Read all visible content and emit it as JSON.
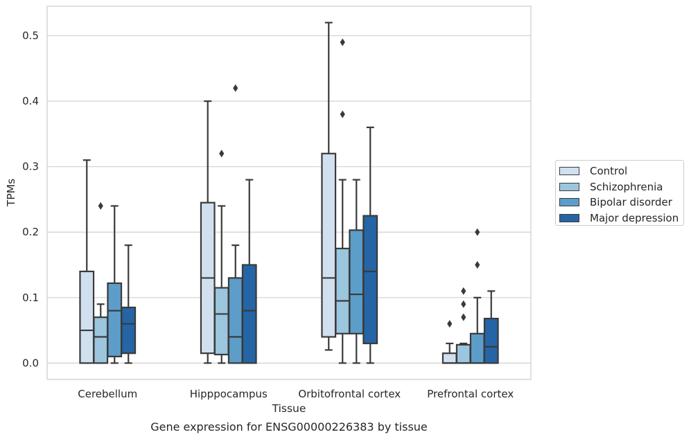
{
  "chart_data": {
    "type": "box",
    "title": "",
    "xlabel": "Tissue",
    "ylabel": "TPMs",
    "caption": "Gene expression for ENSG00000226383 by tissue",
    "ylim": [
      -0.025,
      0.545
    ],
    "yticks": [
      0.0,
      0.1,
      0.2,
      0.3,
      0.4,
      0.5
    ],
    "ytick_labels": [
      "0.0",
      "0.1",
      "0.2",
      "0.3",
      "0.4",
      "0.5"
    ],
    "grid": true,
    "legend_position": "right",
    "categories": [
      "Cerebellum",
      "Hipppocampus",
      "Orbitofrontal cortex",
      "Prefrontal cortex"
    ],
    "series": [
      {
        "name": "Control",
        "color": "#d0e0ef",
        "boxes": [
          {
            "q1": 0.0,
            "median": 0.05,
            "q3": 0.14,
            "whislo": 0.0,
            "whishi": 0.31,
            "fliers": []
          },
          {
            "q1": 0.015,
            "median": 0.13,
            "q3": 0.245,
            "whislo": 0.0,
            "whishi": 0.4,
            "fliers": []
          },
          {
            "q1": 0.04,
            "median": 0.13,
            "q3": 0.32,
            "whislo": 0.02,
            "whishi": 0.52,
            "fliers": []
          },
          {
            "q1": 0.0,
            "median": 0.0,
            "q3": 0.015,
            "whislo": 0.0,
            "whishi": 0.03,
            "fliers": [
              0.06
            ]
          }
        ]
      },
      {
        "name": "Schizophrenia",
        "color": "#9cc5de",
        "boxes": [
          {
            "q1": 0.0,
            "median": 0.04,
            "q3": 0.07,
            "whislo": 0.0,
            "whishi": 0.09,
            "fliers": [
              0.24
            ]
          },
          {
            "q1": 0.013,
            "median": 0.075,
            "q3": 0.115,
            "whislo": 0.0,
            "whishi": 0.24,
            "fliers": [
              0.32
            ]
          },
          {
            "q1": 0.045,
            "median": 0.095,
            "q3": 0.175,
            "whislo": 0.0,
            "whishi": 0.28,
            "fliers": [
              0.38,
              0.49
            ]
          },
          {
            "q1": 0.0,
            "median": 0.0,
            "q3": 0.028,
            "whislo": 0.0,
            "whishi": 0.03,
            "fliers": [
              0.07,
              0.09,
              0.11
            ]
          }
        ]
      },
      {
        "name": "Bipolar disorder",
        "color": "#5d9dc9",
        "boxes": [
          {
            "q1": 0.01,
            "median": 0.08,
            "q3": 0.122,
            "whislo": 0.0,
            "whishi": 0.24,
            "fliers": []
          },
          {
            "q1": 0.0,
            "median": 0.04,
            "q3": 0.13,
            "whislo": 0.0,
            "whishi": 0.18,
            "fliers": [
              0.42
            ]
          },
          {
            "q1": 0.045,
            "median": 0.105,
            "q3": 0.203,
            "whislo": 0.0,
            "whishi": 0.28,
            "fliers": []
          },
          {
            "q1": 0.0,
            "median": 0.0,
            "q3": 0.045,
            "whislo": 0.0,
            "whishi": 0.1,
            "fliers": [
              0.15,
              0.2
            ]
          }
        ]
      },
      {
        "name": "Major depression",
        "color": "#2565a6",
        "boxes": [
          {
            "q1": 0.015,
            "median": 0.06,
            "q3": 0.085,
            "whislo": 0.0,
            "whishi": 0.18,
            "fliers": []
          },
          {
            "q1": 0.0,
            "median": 0.08,
            "q3": 0.15,
            "whislo": 0.0,
            "whishi": 0.28,
            "fliers": []
          },
          {
            "q1": 0.03,
            "median": 0.14,
            "q3": 0.225,
            "whislo": 0.0,
            "whishi": 0.36,
            "fliers": []
          },
          {
            "q1": 0.0,
            "median": 0.025,
            "q3": 0.068,
            "whislo": 0.0,
            "whishi": 0.11,
            "fliers": []
          }
        ]
      }
    ]
  }
}
